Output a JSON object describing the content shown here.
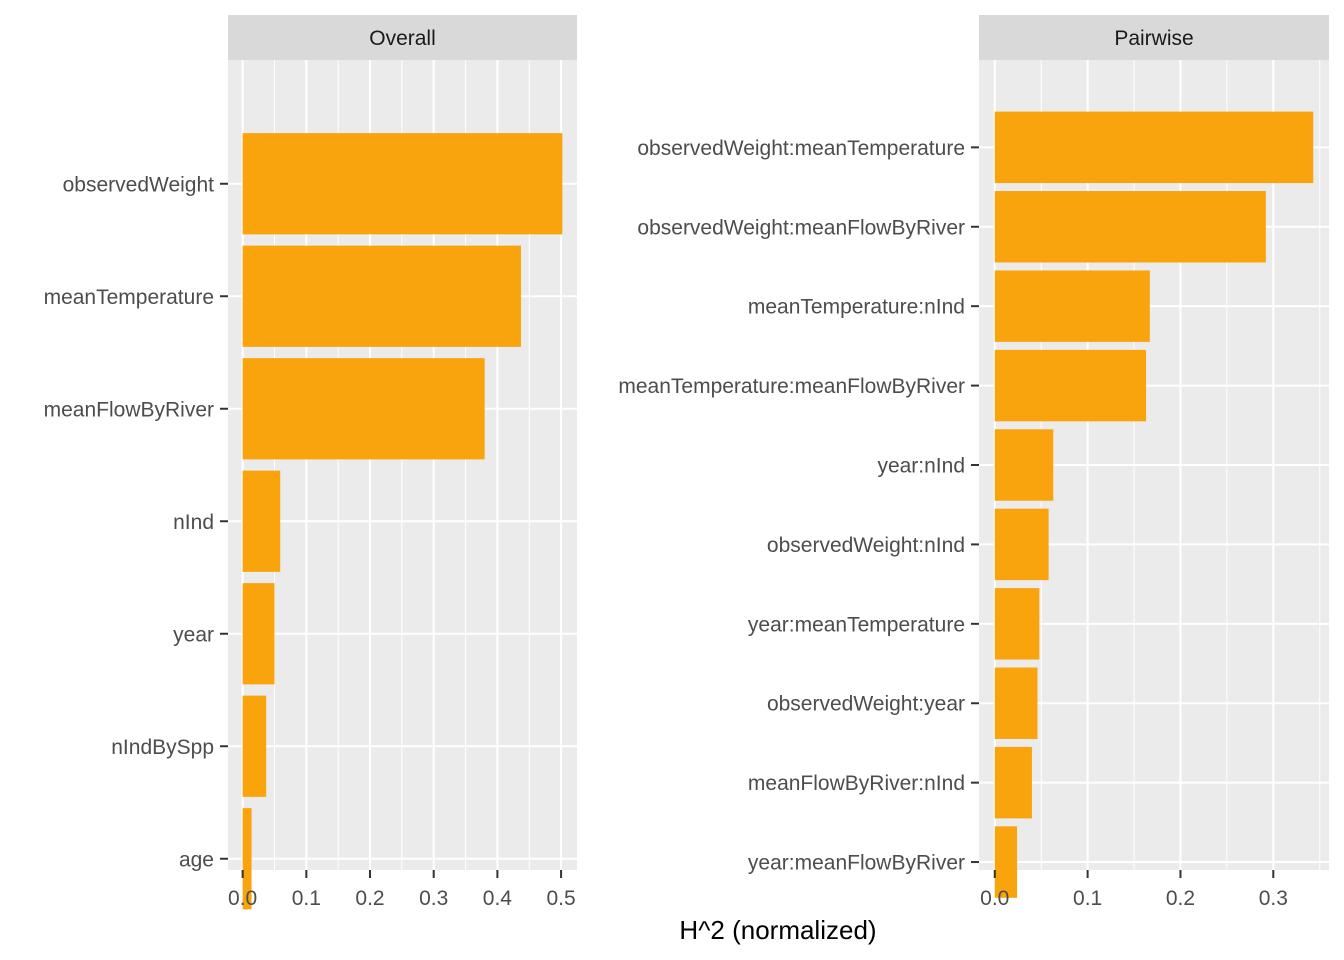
{
  "xlabel": "H^2 (normalized)",
  "colors": {
    "bar": "#FAA40D",
    "panel_background": "#EBEBEB",
    "strip_background": "#D9D9D9",
    "grid": "#FFFFFF"
  },
  "chart_data": [
    {
      "type": "bar",
      "orientation": "horizontal",
      "title": "Overall",
      "categories": [
        "observedWeight",
        "meanTemperature",
        "meanFlowByRiver",
        "nInd",
        "year",
        "nIndBySpp",
        "age"
      ],
      "values": [
        0.502,
        0.437,
        0.38,
        0.059,
        0.05,
        0.037,
        0.014
      ],
      "xlim": [
        -0.023,
        0.525
      ],
      "xticks": [
        0.0,
        0.1,
        0.2,
        0.3,
        0.4,
        0.5
      ],
      "xtick_labels": [
        "0.0",
        "0.1",
        "0.2",
        "0.3",
        "0.4",
        "0.5"
      ],
      "grid": true
    },
    {
      "type": "bar",
      "orientation": "horizontal",
      "title": "Pairwise",
      "categories": [
        "observedWeight:meanTemperature",
        "observedWeight:meanFlowByRiver",
        "meanTemperature:nInd",
        "meanTemperature:meanFlowByRiver",
        "year:nInd",
        "observedWeight:nInd",
        "year:meanTemperature",
        "observedWeight:year",
        "meanFlowByRiver:nInd",
        "year:meanFlowByRiver"
      ],
      "values": [
        0.343,
        0.292,
        0.167,
        0.163,
        0.063,
        0.058,
        0.048,
        0.046,
        0.04,
        0.024
      ],
      "xlim": [
        -0.017,
        0.36
      ],
      "xticks": [
        0.0,
        0.1,
        0.2,
        0.3
      ],
      "xtick_labels": [
        "0.0",
        "0.1",
        "0.2",
        "0.3"
      ],
      "grid": true
    }
  ]
}
